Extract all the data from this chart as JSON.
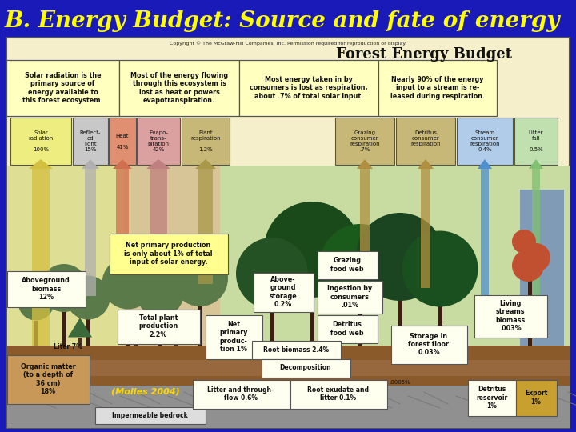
{
  "title": "B. Energy Budget: Source and fate of energy",
  "title_color": "#FFFF00",
  "title_fontsize": 20,
  "title_fontstyle": "italic",
  "title_fontweight": "bold",
  "background_color": "#1a1ab8",
  "subtitle_color": "#FFD700",
  "inner_title": "Forest Energy Budget",
  "copyright_text": "Copyright © The McGraw-Hill Companies, Inc. Permission required for reproduction or display.",
  "box1_text": "Solar radiation is the\nprimary source of\nenergy available to\nthis forest ecosystem.",
  "box2_text": "Most of the energy flowing\nthrough this ecosystem is\nlost as heat or powers\nevapotranspiration.",
  "box3_text": "Most energy taken in by\nconsumers is lost as respiration,\nabout .7% of total solar input.",
  "box4_text": "Nearly 90% of the energy\ninput to a stream is re-\nleased during respiration.",
  "note1": "Net primary production\nis only about 1% of total\ninput of solar energy.",
  "aboveground_biomass": "Aboveground\nbiomass\n12%",
  "total_plant": "Total plant\nproduction\n2.2%",
  "net_primary": "Net\nprimary\nproduc-\ntion 1%",
  "liter_text": "Liter 7%",
  "organic_matter": "Organic matter\n(to a depth of\n36 cm)\n18%",
  "molles_text": "(Molles 2004)",
  "impermeable": "Impermeable bedrock",
  "root_biomass": "Root biomass 2.4%",
  "decomposition": "Decomposition",
  "litter_flow": "Litter and through-\nflow 0.6%",
  "root_exudate": "Root exudate and\nlitter 0.1%",
  "detritus_005": ".0005%",
  "detritus_res": "Detritus\nreservoir\n1%",
  "export_text": "Export\n1%",
  "above_storage": "Above-\nground\nstorage\n0.2%",
  "grazing_web": "Grazing\nfood web",
  "ingestion": "Ingestion by\nconsumers\n.01%",
  "detritus_web": "Detritus\nfood web",
  "storage_floor": "Storage in\nforest floor\n0.03%",
  "living_streams": "Living\nstreams\nbiomass\n.003%",
  "diagram_bg": "#f5efcc",
  "soil_color": "#8b5a2b",
  "bedrock_color": "#aaaaaa",
  "water_color": "#5080c0",
  "sky_color": "#c8dba0"
}
